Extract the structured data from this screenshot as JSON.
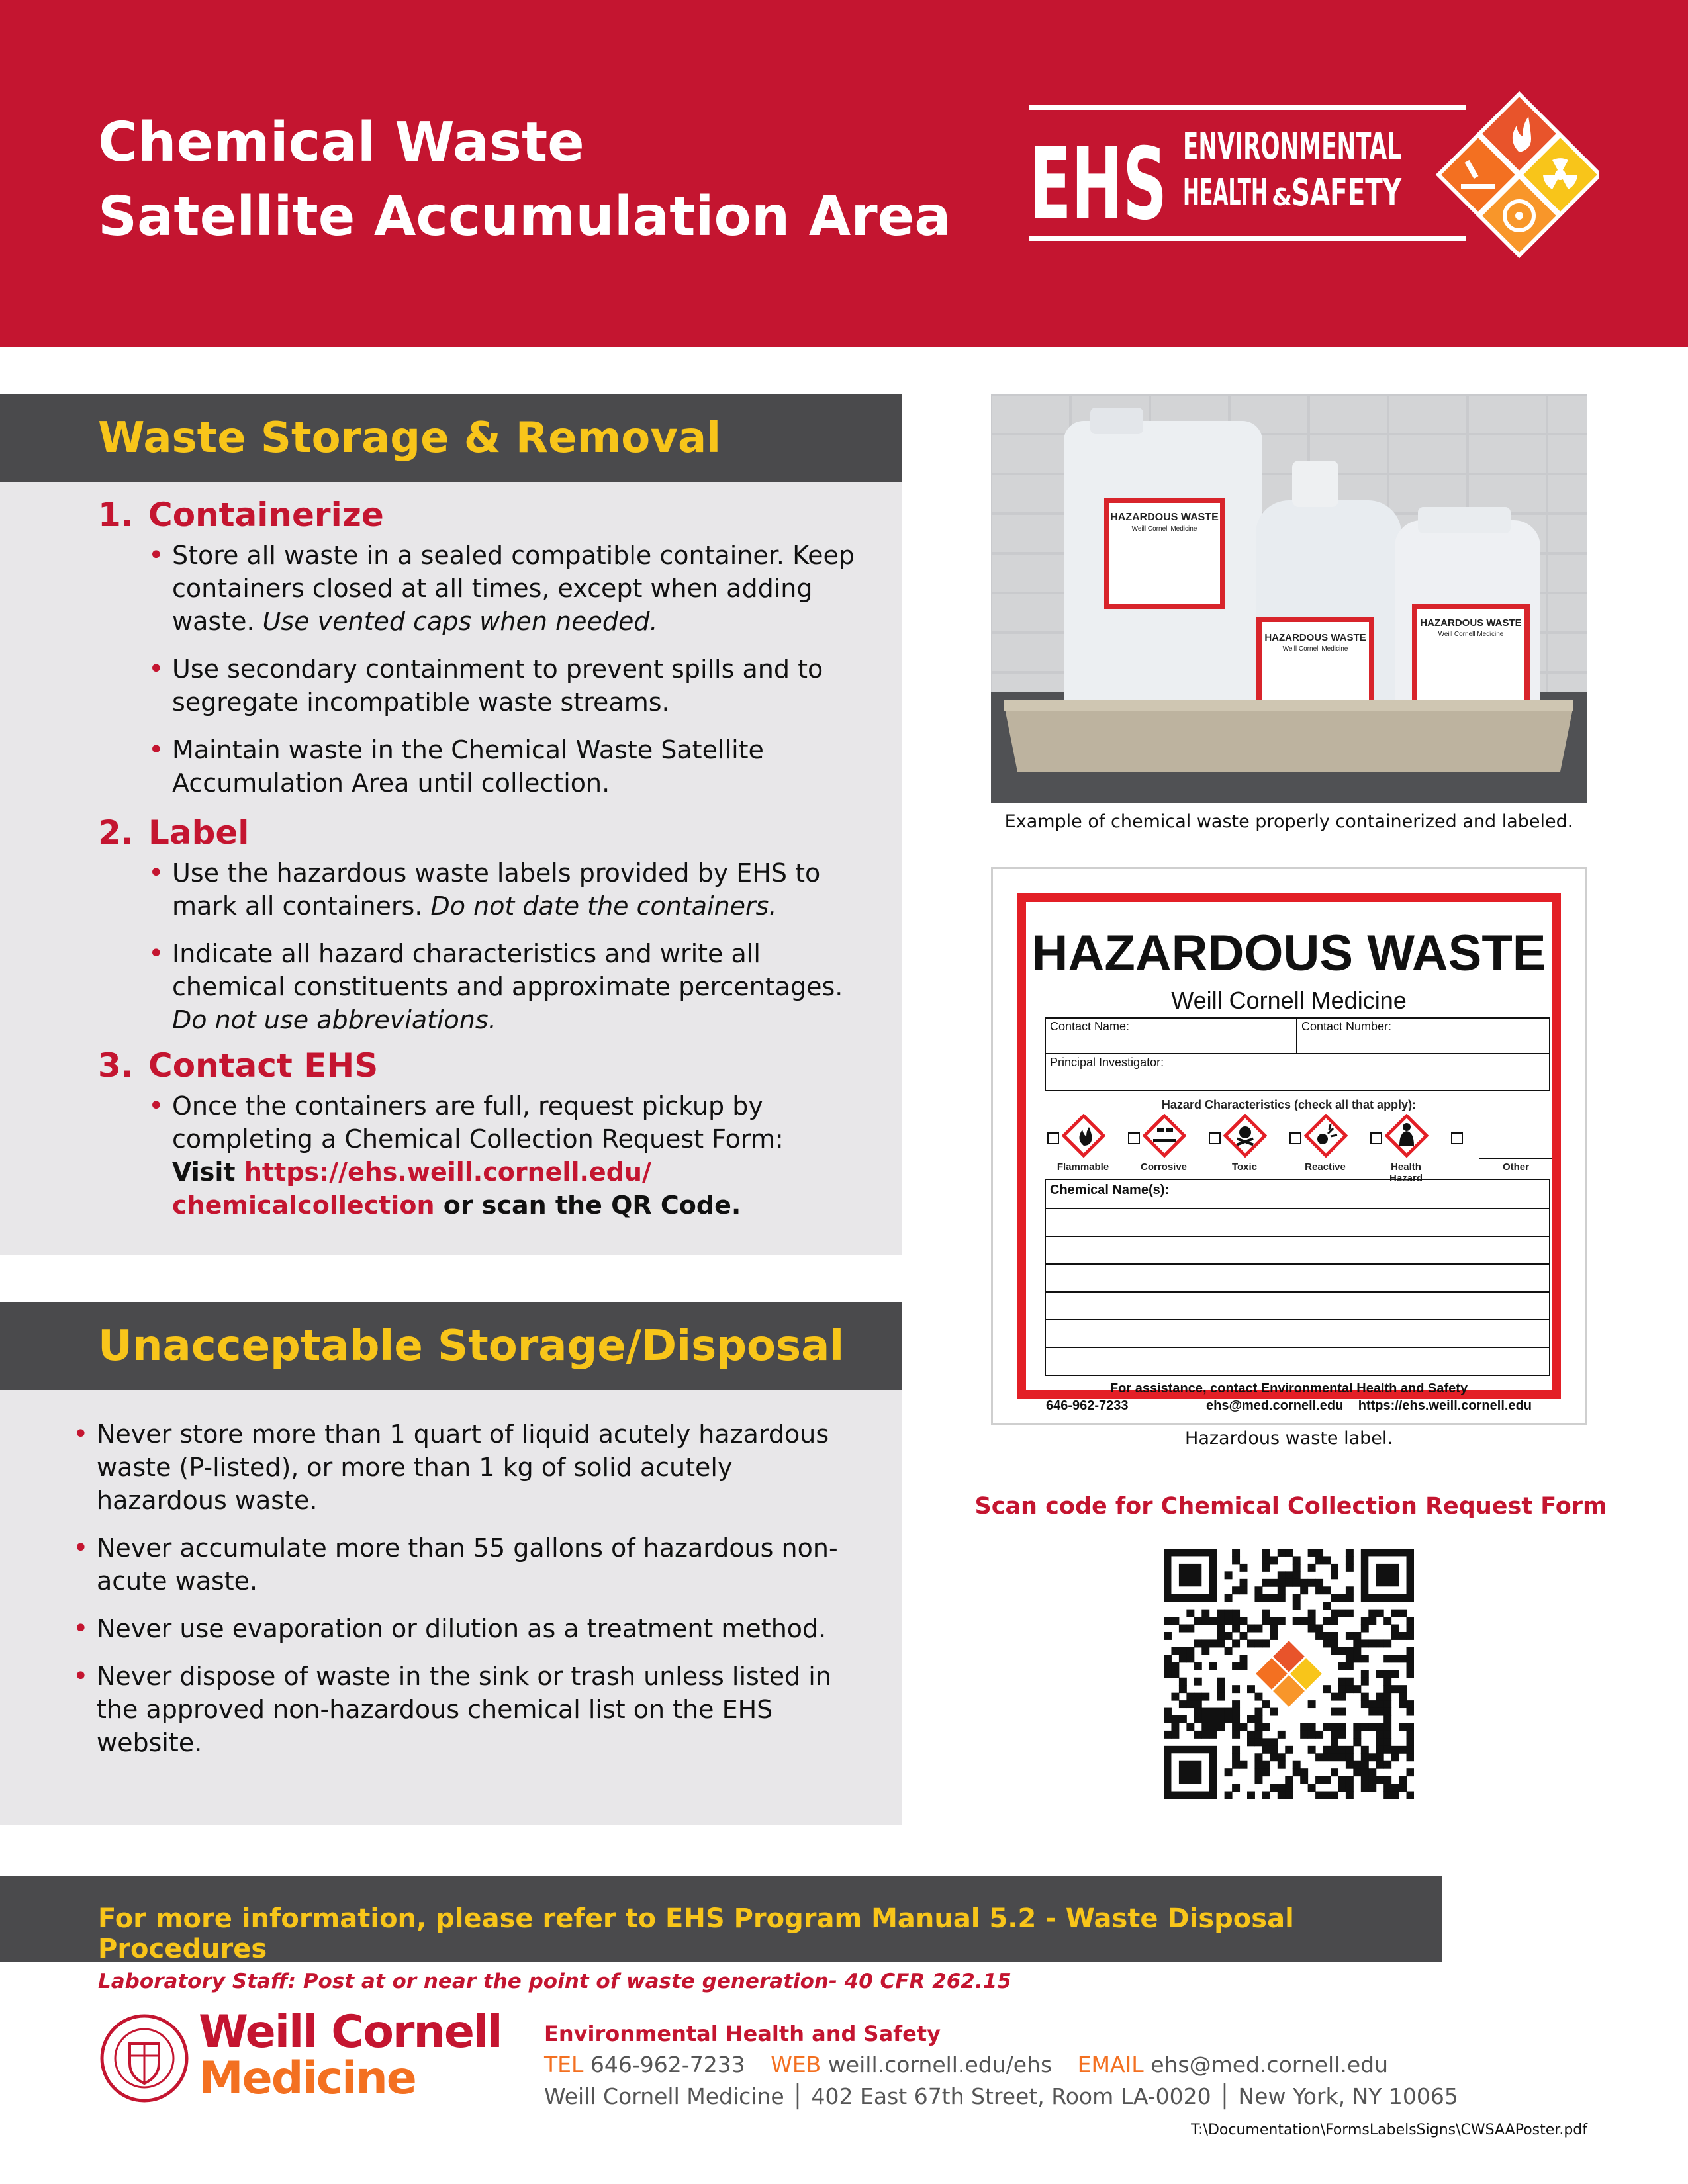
{
  "header": {
    "title_line1": "Chemical Waste",
    "title_line2": "Satellite Accumulation Area",
    "logo": {
      "mark": "EHS",
      "line1": "ENVIRONMENTAL",
      "line2": "HEALTH",
      "amp": "&",
      "line3": "SAFETY",
      "icons": [
        "flame-icon",
        "radiation-icon",
        "biohazard-icon",
        "corrosive-icon"
      ]
    }
  },
  "storage": {
    "heading": "Waste Storage & Removal",
    "steps": [
      {
        "num": "1.",
        "title": "Containerize",
        "bullets": [
          {
            "text": "Store all waste in a sealed compatible container. Keep containers closed at all times, except when adding waste. ",
            "italic": "Use vented caps when needed."
          },
          {
            "text": "Use secondary containment to prevent spills and to segregate incompatible waste streams.",
            "italic": ""
          },
          {
            "text": "Maintain waste in the Chemical Waste Satellite Accumulation Area until collection.",
            "italic": ""
          }
        ]
      },
      {
        "num": "2.",
        "title": "Label",
        "bullets": [
          {
            "text": "Use the hazardous waste labels provided by EHS to mark all containers. ",
            "italic": "Do not date the containers."
          },
          {
            "text": "Indicate all hazard characteristics and write all chemical constituents and approximate percentages. ",
            "italic": "Do not use abbreviations."
          }
        ]
      },
      {
        "num": "3.",
        "title": "Contact EHS",
        "bullet_text": "Once the containers are full, request pickup by completing a Chemical Collection Request Form: ",
        "bullet_visit": "Visit ",
        "bullet_url": "https://ehs.weill.cornell.edu/ chemicalcollection",
        "bullet_tail": " or scan the QR Code."
      }
    ]
  },
  "unacceptable": {
    "heading": "Unacceptable Storage/Disposal",
    "bullets": [
      "Never store more than 1 quart of liquid acutely hazardous waste (P-listed), or more than 1 kg of solid acutely hazardous waste.",
      "Never accumulate more than 55 gallons of hazardous non-acute waste.",
      "Never use evaporation or dilution as a treatment method.",
      "Never dispose of waste in the sink or trash unless listed in the approved non-hazardous chemical list on the EHS website."
    ]
  },
  "photo": {
    "caption": "Example of chemical waste properly containerized and labeled.",
    "container_label": "HAZARDOUS WASTE",
    "container_sub": "Weill Cornell Medicine"
  },
  "label": {
    "title": "HAZARDOUS WASTE",
    "subtitle": "Weill Cornell Medicine",
    "contact_name": "Contact Name:",
    "contact_number": "Contact Number:",
    "pi": "Principal Investigator:",
    "hazard_heading": "Hazard Characteristics (check all that apply):",
    "hazards": [
      "Flammable",
      "Corrosive",
      "Toxic",
      "Reactive",
      "Health Hazard",
      "Other"
    ],
    "chemical_names": "Chemical Name(s):",
    "assist": "For assistance, contact Environmental Health and Safety",
    "phone": "646-962-7233",
    "email": "ehs@med.cornell.edu",
    "web": "https://ehs.weill.cornell.edu",
    "caption": "Hazardous waste label."
  },
  "qr": {
    "caption": "Scan code for Chemical Collection Request Form"
  },
  "footer": {
    "info": "For more information, please refer to EHS Program Manual 5.2 - Waste Disposal Procedures",
    "post_note": "Laboratory Staff: Post at or near the point of waste generation- 40 CFR 262.15",
    "wcm_line1": "Weill Cornell",
    "wcm_line2": "Medicine",
    "dept": "Environmental Health and Safety",
    "tel_label": "TEL",
    "tel": "646-962-7233",
    "web_label": "WEB",
    "web": "weill.cornell.edu/ehs",
    "email_label": "EMAIL",
    "email": "ehs@med.cornell.edu",
    "address": "Weill Cornell Medicine │ 402 East 67th Street, Room LA-0020 │ New York, NY 10065",
    "path": "T:\\Documentation\\FormsLabelsSigns\\CWSAAPoster.pdf"
  },
  "colors": {
    "brand_red": "#c41530",
    "accent_yellow": "#f8c51a",
    "panel_gray": "#e8e7e9",
    "header_gray": "#4a4a4c",
    "orange": "#f37021"
  }
}
